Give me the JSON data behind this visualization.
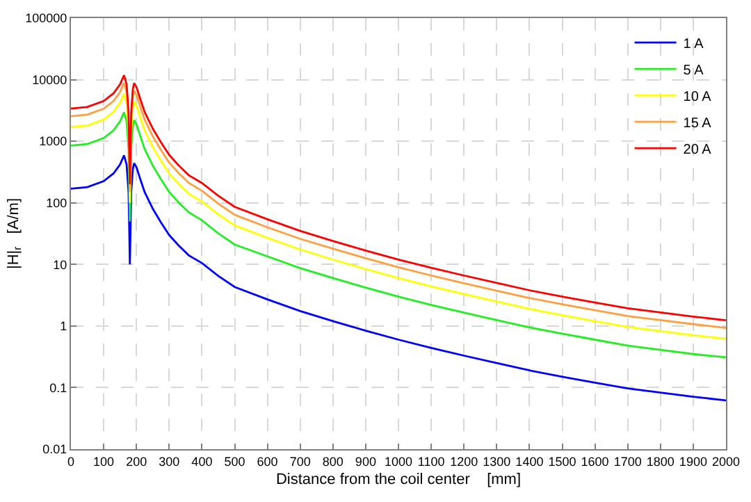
{
  "chart_data": {
    "type": "line",
    "xlabel": "Distance from the coil center    [mm]",
    "ylabel": "|H|$_{r}$   [A/m]",
    "x": [
      0,
      50,
      100,
      130,
      150,
      162,
      170,
      176,
      180,
      184,
      189,
      193,
      200,
      212,
      225,
      250,
      275,
      300,
      330,
      360,
      400,
      450,
      500,
      600,
      700,
      800,
      900,
      1000,
      1100,
      1200,
      1300,
      1400,
      1500,
      1600,
      1700,
      1800,
      1900,
      2000
    ],
    "series": [
      {
        "name": "1 A",
        "color": "#0000ff",
        "values": [
          170,
          180,
          225,
          300,
          420,
          590,
          420,
          150,
          10,
          150,
          350,
          440,
          380,
          240,
          150,
          80,
          48,
          30,
          20,
          14,
          10.5,
          6.5,
          4.3,
          2.7,
          1.75,
          1.2,
          0.84,
          0.6,
          0.44,
          0.33,
          0.25,
          0.19,
          0.15,
          0.12,
          0.097,
          0.083,
          0.071,
          0.062
        ]
      },
      {
        "name": "5 A",
        "color": "#22ee22",
        "values": [
          850,
          900,
          1125,
          1500,
          2100,
          2950,
          2100,
          750,
          50,
          750,
          1750,
          2200,
          1900,
          1200,
          750,
          400,
          240,
          150,
          100,
          70,
          52,
          32,
          21,
          13.5,
          8.7,
          6,
          4.2,
          3,
          2.2,
          1.65,
          1.25,
          0.95,
          0.75,
          0.6,
          0.48,
          0.41,
          0.35,
          0.31
        ]
      },
      {
        "name": "10 A",
        "color": "#ffff00",
        "values": [
          1700,
          1800,
          2250,
          3000,
          4200,
          5900,
          4200,
          1500,
          100,
          1500,
          3500,
          4400,
          3800,
          2400,
          1500,
          800,
          480,
          300,
          200,
          140,
          105,
          65,
          43,
          27,
          17.5,
          12,
          8.4,
          6,
          4.4,
          3.3,
          2.5,
          1.9,
          1.5,
          1.2,
          0.97,
          0.83,
          0.71,
          0.62
        ]
      },
      {
        "name": "15 A",
        "color": "#ffa040",
        "values": [
          2550,
          2700,
          3375,
          4500,
          6300,
          8850,
          6300,
          2250,
          150,
          2250,
          5250,
          6600,
          5700,
          3600,
          2250,
          1200,
          720,
          450,
          300,
          210,
          157,
          97,
          64,
          40,
          26,
          18,
          12.6,
          9,
          6.6,
          4.95,
          3.75,
          2.85,
          2.25,
          1.8,
          1.45,
          1.25,
          1.07,
          0.93
        ]
      },
      {
        "name": "20 A",
        "color": "#ff0000",
        "values": [
          3400,
          3600,
          4500,
          6000,
          8400,
          11800,
          8400,
          3000,
          200,
          3000,
          7000,
          8800,
          7600,
          4800,
          3000,
          1600,
          960,
          600,
          400,
          280,
          210,
          130,
          86,
          54,
          35,
          24,
          16.8,
          12,
          8.8,
          6.6,
          5,
          3.8,
          3,
          2.4,
          1.94,
          1.66,
          1.42,
          1.24
        ]
      }
    ],
    "xlim": [
      0,
      2000
    ],
    "xticks": [
      0,
      100,
      200,
      300,
      400,
      500,
      600,
      700,
      800,
      900,
      1000,
      1100,
      1200,
      1300,
      1400,
      1500,
      1600,
      1700,
      1800,
      1900,
      2000
    ],
    "ylim": [
      0.01,
      100000
    ],
    "yticks": [
      {
        "value": 0.01,
        "label": "0.01"
      },
      {
        "value": 0.1,
        "label": "0.1"
      },
      1,
      10,
      100,
      1000,
      10000,
      100000
    ],
    "log": "y",
    "grid": true,
    "legend": "top right",
    "line_style": "solid",
    "marker": "none"
  }
}
